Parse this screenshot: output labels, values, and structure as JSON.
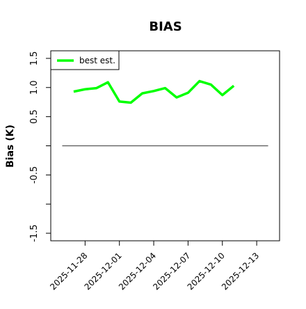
{
  "chart_data": {
    "type": "line",
    "title": "BIAS",
    "ylabel": "Bias (K)",
    "x": [
      "2025-11-27",
      "2025-11-28",
      "2025-11-29",
      "2025-11-30",
      "2025-12-01",
      "2025-12-02",
      "2025-12-03",
      "2025-12-04",
      "2025-12-05",
      "2025-12-06",
      "2025-12-07",
      "2025-12-08",
      "2025-12-09",
      "2025-12-10",
      "2025-12-11"
    ],
    "series": [
      {
        "name": "best est.",
        "color": "#00ff00",
        "values": [
          0.93,
          0.97,
          0.99,
          1.09,
          0.76,
          0.74,
          0.9,
          0.94,
          0.99,
          0.83,
          0.91,
          1.11,
          1.05,
          0.87,
          1.03
        ]
      }
    ],
    "xlim": [
      "2025-11-25",
      "2025-12-15"
    ],
    "xticks": [
      "2025-11-28",
      "2025-12-01",
      "2025-12-04",
      "2025-12-07",
      "2025-12-10",
      "2025-12-13"
    ],
    "ylim": [
      -1.63,
      1.63
    ],
    "yticks": [
      {
        "value": 1.5,
        "label": "1.5"
      },
      {
        "value": 1,
        "label": "1.0"
      },
      0.5,
      -0.5,
      -1.5
    ],
    "yunlabeled_ticks": [
      0,
      -1
    ],
    "hline": {
      "value": 0,
      "x": [
        "2025-11-26",
        "2025-12-14"
      ],
      "color": "#555555"
    },
    "legend": "top-left"
  }
}
